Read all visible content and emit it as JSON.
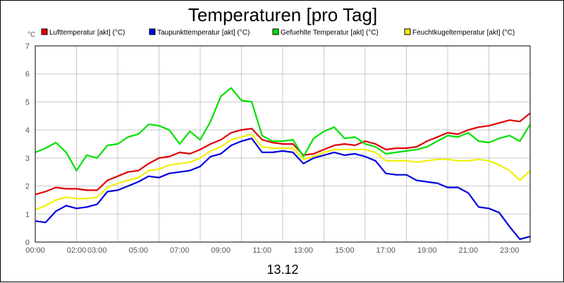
{
  "chart_data": {
    "type": "line",
    "title": "Temperaturen [pro Tag]",
    "ylabel": "°C",
    "xlabel": "13.12",
    "ylim": [
      0,
      7
    ],
    "xlim_hours": [
      0,
      24
    ],
    "grid": true,
    "legend_position": "top",
    "yticks": [
      "0",
      "1",
      "2",
      "3",
      "4",
      "5",
      "6",
      "7"
    ],
    "xticks": [
      "00:00",
      "02:00",
      "03:00",
      "05:00",
      "07:00",
      "09:00",
      "11:00",
      "13:00",
      "15:00",
      "17:00",
      "19:00",
      "21:00",
      "23:00"
    ],
    "xtick_hours": [
      0,
      2,
      3,
      5,
      7,
      9,
      11,
      13,
      15,
      17,
      19,
      21,
      23
    ],
    "series": [
      {
        "name": "Lufttemperatur [akt] (°C)",
        "color": "#e00000",
        "points": [
          [
            0,
            1.7
          ],
          [
            0.5,
            1.8
          ],
          [
            1,
            1.95
          ],
          [
            1.5,
            1.9
          ],
          [
            2,
            1.9
          ],
          [
            2.5,
            1.85
          ],
          [
            3,
            1.85
          ],
          [
            3.5,
            2.2
          ],
          [
            4,
            2.35
          ],
          [
            4.5,
            2.5
          ],
          [
            5,
            2.55
          ],
          [
            5.5,
            2.8
          ],
          [
            6,
            3.0
          ],
          [
            6.5,
            3.05
          ],
          [
            7,
            3.2
          ],
          [
            7.5,
            3.15
          ],
          [
            8,
            3.3
          ],
          [
            8.5,
            3.5
          ],
          [
            9,
            3.65
          ],
          [
            9.5,
            3.9
          ],
          [
            10,
            4.0
          ],
          [
            10.5,
            4.05
          ],
          [
            11,
            3.65
          ],
          [
            11.5,
            3.55
          ],
          [
            12,
            3.5
          ],
          [
            12.5,
            3.5
          ],
          [
            13,
            3.1
          ],
          [
            13.5,
            3.15
          ],
          [
            14,
            3.3
          ],
          [
            14.5,
            3.45
          ],
          [
            15,
            3.5
          ],
          [
            15.5,
            3.45
          ],
          [
            16,
            3.6
          ],
          [
            16.5,
            3.5
          ],
          [
            17,
            3.3
          ],
          [
            17.5,
            3.35
          ],
          [
            18,
            3.35
          ],
          [
            18.5,
            3.4
          ],
          [
            19,
            3.6
          ],
          [
            19.5,
            3.75
          ],
          [
            20,
            3.9
          ],
          [
            20.5,
            3.85
          ],
          [
            21,
            4.0
          ],
          [
            21.5,
            4.1
          ],
          [
            22,
            4.15
          ],
          [
            22.5,
            4.25
          ],
          [
            23,
            4.35
          ],
          [
            23.5,
            4.3
          ],
          [
            24,
            4.6
          ]
        ]
      },
      {
        "name": "Taupunkttemperatur [akt] (°C)",
        "color": "#0000e0",
        "points": [
          [
            0,
            0.75
          ],
          [
            0.5,
            0.7
          ],
          [
            1,
            1.1
          ],
          [
            1.5,
            1.3
          ],
          [
            2,
            1.2
          ],
          [
            2.5,
            1.25
          ],
          [
            3,
            1.35
          ],
          [
            3.5,
            1.8
          ],
          [
            4,
            1.85
          ],
          [
            4.5,
            2.0
          ],
          [
            5,
            2.15
          ],
          [
            5.5,
            2.35
          ],
          [
            6,
            2.3
          ],
          [
            6.5,
            2.45
          ],
          [
            7,
            2.5
          ],
          [
            7.5,
            2.55
          ],
          [
            8,
            2.7
          ],
          [
            8.5,
            3.05
          ],
          [
            9,
            3.15
          ],
          [
            9.5,
            3.45
          ],
          [
            10,
            3.6
          ],
          [
            10.5,
            3.7
          ],
          [
            11,
            3.2
          ],
          [
            11.5,
            3.2
          ],
          [
            12,
            3.25
          ],
          [
            12.5,
            3.2
          ],
          [
            13,
            2.8
          ],
          [
            13.5,
            3.0
          ],
          [
            14,
            3.1
          ],
          [
            14.5,
            3.2
          ],
          [
            15,
            3.1
          ],
          [
            15.5,
            3.15
          ],
          [
            16,
            3.05
          ],
          [
            16.5,
            2.9
          ],
          [
            17,
            2.45
          ],
          [
            17.5,
            2.4
          ],
          [
            18,
            2.4
          ],
          [
            18.5,
            2.2
          ],
          [
            19,
            2.15
          ],
          [
            19.5,
            2.1
          ],
          [
            20,
            1.95
          ],
          [
            20.5,
            1.95
          ],
          [
            21,
            1.75
          ],
          [
            21.5,
            1.25
          ],
          [
            22,
            1.2
          ],
          [
            22.5,
            1.05
          ],
          [
            23,
            0.55
          ],
          [
            23.5,
            0.1
          ],
          [
            24,
            0.2
          ]
        ]
      },
      {
        "name": "Gefuehlte Temperatur [akt] (°C)",
        "color": "#00e000",
        "points": [
          [
            0,
            3.2
          ],
          [
            0.5,
            3.35
          ],
          [
            1,
            3.55
          ],
          [
            1.5,
            3.2
          ],
          [
            2,
            2.55
          ],
          [
            2.5,
            3.1
          ],
          [
            3,
            3.0
          ],
          [
            3.5,
            3.45
          ],
          [
            4,
            3.5
          ],
          [
            4.5,
            3.75
          ],
          [
            5,
            3.85
          ],
          [
            5.5,
            4.2
          ],
          [
            6,
            4.15
          ],
          [
            6.5,
            4.0
          ],
          [
            7,
            3.5
          ],
          [
            7.5,
            3.95
          ],
          [
            8,
            3.65
          ],
          [
            8.5,
            4.3
          ],
          [
            9,
            5.2
          ],
          [
            9.5,
            5.5
          ],
          [
            10,
            5.05
          ],
          [
            10.5,
            5.0
          ],
          [
            11,
            3.8
          ],
          [
            11.5,
            3.6
          ],
          [
            12,
            3.6
          ],
          [
            12.5,
            3.65
          ],
          [
            13,
            3.05
          ],
          [
            13.5,
            3.7
          ],
          [
            14,
            3.95
          ],
          [
            14.5,
            4.1
          ],
          [
            15,
            3.7
          ],
          [
            15.5,
            3.75
          ],
          [
            16,
            3.5
          ],
          [
            16.5,
            3.4
          ],
          [
            17,
            3.15
          ],
          [
            17.5,
            3.2
          ],
          [
            18,
            3.25
          ],
          [
            18.5,
            3.3
          ],
          [
            19,
            3.4
          ],
          [
            19.5,
            3.6
          ],
          [
            20,
            3.8
          ],
          [
            20.5,
            3.75
          ],
          [
            21,
            3.9
          ],
          [
            21.5,
            3.6
          ],
          [
            22,
            3.55
          ],
          [
            22.5,
            3.7
          ],
          [
            23,
            3.8
          ],
          [
            23.5,
            3.6
          ],
          [
            24,
            4.2
          ]
        ]
      },
      {
        "name": "Feuchtkugeltemperatur [akt] (°C)",
        "color": "#f0f000",
        "points": [
          [
            0,
            1.15
          ],
          [
            0.5,
            1.3
          ],
          [
            1,
            1.5
          ],
          [
            1.5,
            1.6
          ],
          [
            2,
            1.55
          ],
          [
            2.5,
            1.55
          ],
          [
            3,
            1.6
          ],
          [
            3.5,
            1.95
          ],
          [
            4,
            2.1
          ],
          [
            4.5,
            2.2
          ],
          [
            5,
            2.3
          ],
          [
            5.5,
            2.55
          ],
          [
            6,
            2.6
          ],
          [
            6.5,
            2.75
          ],
          [
            7,
            2.8
          ],
          [
            7.5,
            2.85
          ],
          [
            8,
            3.0
          ],
          [
            8.5,
            3.25
          ],
          [
            9,
            3.4
          ],
          [
            9.5,
            3.65
          ],
          [
            10,
            3.75
          ],
          [
            10.5,
            3.85
          ],
          [
            11,
            3.4
          ],
          [
            11.5,
            3.35
          ],
          [
            12,
            3.35
          ],
          [
            12.5,
            3.35
          ],
          [
            13,
            2.95
          ],
          [
            13.5,
            3.05
          ],
          [
            14,
            3.2
          ],
          [
            14.5,
            3.3
          ],
          [
            15,
            3.3
          ],
          [
            15.5,
            3.3
          ],
          [
            16,
            3.3
          ],
          [
            16.5,
            3.2
          ],
          [
            17,
            2.9
          ],
          [
            17.5,
            2.9
          ],
          [
            18,
            2.9
          ],
          [
            18.5,
            2.85
          ],
          [
            19,
            2.9
          ],
          [
            19.5,
            2.95
          ],
          [
            20,
            2.95
          ],
          [
            20.5,
            2.9
          ],
          [
            21,
            2.9
          ],
          [
            21.5,
            2.95
          ],
          [
            22,
            2.9
          ],
          [
            22.5,
            2.75
          ],
          [
            23,
            2.55
          ],
          [
            23.5,
            2.2
          ],
          [
            24,
            2.55
          ]
        ]
      }
    ]
  }
}
